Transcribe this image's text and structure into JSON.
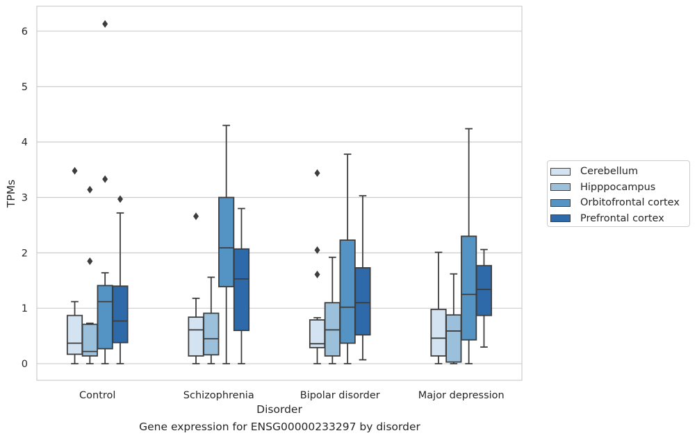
{
  "caption": "Gene expression for ENSG00000233297 by disorder",
  "chart_data": {
    "type": "box",
    "title": "",
    "xlabel": "Disorder",
    "ylabel": "TPMs",
    "ylim": [
      -0.3,
      6.45
    ],
    "yticks": [
      0,
      1,
      2,
      3,
      4,
      5,
      6
    ],
    "grid": "horizontal",
    "legend_placement": "right",
    "categories": [
      "Control",
      "Schizophrenia",
      "Bipolar disorder",
      "Major depression"
    ],
    "series": [
      {
        "name": "Cerebellum",
        "color": "#d4e3f1",
        "boxes": [
          {
            "whislo": 0.0,
            "q1": 0.17,
            "med": 0.37,
            "q3": 0.87,
            "whishi": 1.12,
            "fliers": [
              3.48
            ]
          },
          {
            "whislo": 0.0,
            "q1": 0.14,
            "med": 0.61,
            "q3": 0.84,
            "whishi": 1.18,
            "fliers": [
              2.66
            ]
          },
          {
            "whislo": 0.0,
            "q1": 0.29,
            "med": 0.36,
            "q3": 0.79,
            "whishi": 0.83,
            "fliers": [
              3.44,
              2.05,
              1.61
            ]
          },
          {
            "whislo": 0.0,
            "q1": 0.14,
            "med": 0.46,
            "q3": 0.98,
            "whishi": 2.01,
            "fliers": []
          }
        ]
      },
      {
        "name": "Hipppocampus",
        "color": "#9ac0db",
        "boxes": [
          {
            "whislo": 0.0,
            "q1": 0.14,
            "med": 0.22,
            "q3": 0.71,
            "whishi": 0.73,
            "fliers": [
              3.14,
              1.85
            ]
          },
          {
            "whislo": 0.0,
            "q1": 0.16,
            "med": 0.45,
            "q3": 0.91,
            "whishi": 1.56,
            "fliers": []
          },
          {
            "whislo": 0.0,
            "q1": 0.14,
            "med": 0.61,
            "q3": 1.1,
            "whishi": 1.92,
            "fliers": []
          },
          {
            "whislo": 0.0,
            "q1": 0.03,
            "med": 0.59,
            "q3": 0.88,
            "whishi": 1.62,
            "fliers": []
          }
        ]
      },
      {
        "name": "Orbitofrontal cortex",
        "color": "#5394c5",
        "boxes": [
          {
            "whislo": 0.0,
            "q1": 0.27,
            "med": 1.12,
            "q3": 1.41,
            "whishi": 1.64,
            "fliers": [
              6.13,
              3.33
            ]
          },
          {
            "whislo": 0.0,
            "q1": 1.39,
            "med": 2.09,
            "q3": 3.0,
            "whishi": 4.3,
            "fliers": []
          },
          {
            "whislo": 0.0,
            "q1": 0.37,
            "med": 1.02,
            "q3": 2.23,
            "whishi": 3.78,
            "fliers": []
          },
          {
            "whislo": 0.0,
            "q1": 0.43,
            "med": 1.25,
            "q3": 2.3,
            "whishi": 4.24,
            "fliers": []
          }
        ]
      },
      {
        "name": "Prefrontal cortex",
        "color": "#2e6aa9",
        "boxes": [
          {
            "whislo": 0.0,
            "q1": 0.38,
            "med": 0.77,
            "q3": 1.4,
            "whishi": 2.72,
            "fliers": [
              2.97
            ]
          },
          {
            "whislo": 0.0,
            "q1": 0.6,
            "med": 1.53,
            "q3": 2.07,
            "whishi": 2.8,
            "fliers": []
          },
          {
            "whislo": 0.07,
            "q1": 0.52,
            "med": 1.1,
            "q3": 1.73,
            "whishi": 3.03,
            "fliers": []
          },
          {
            "whislo": 0.3,
            "q1": 0.87,
            "med": 1.34,
            "q3": 1.77,
            "whishi": 2.06,
            "fliers": []
          }
        ]
      }
    ]
  }
}
